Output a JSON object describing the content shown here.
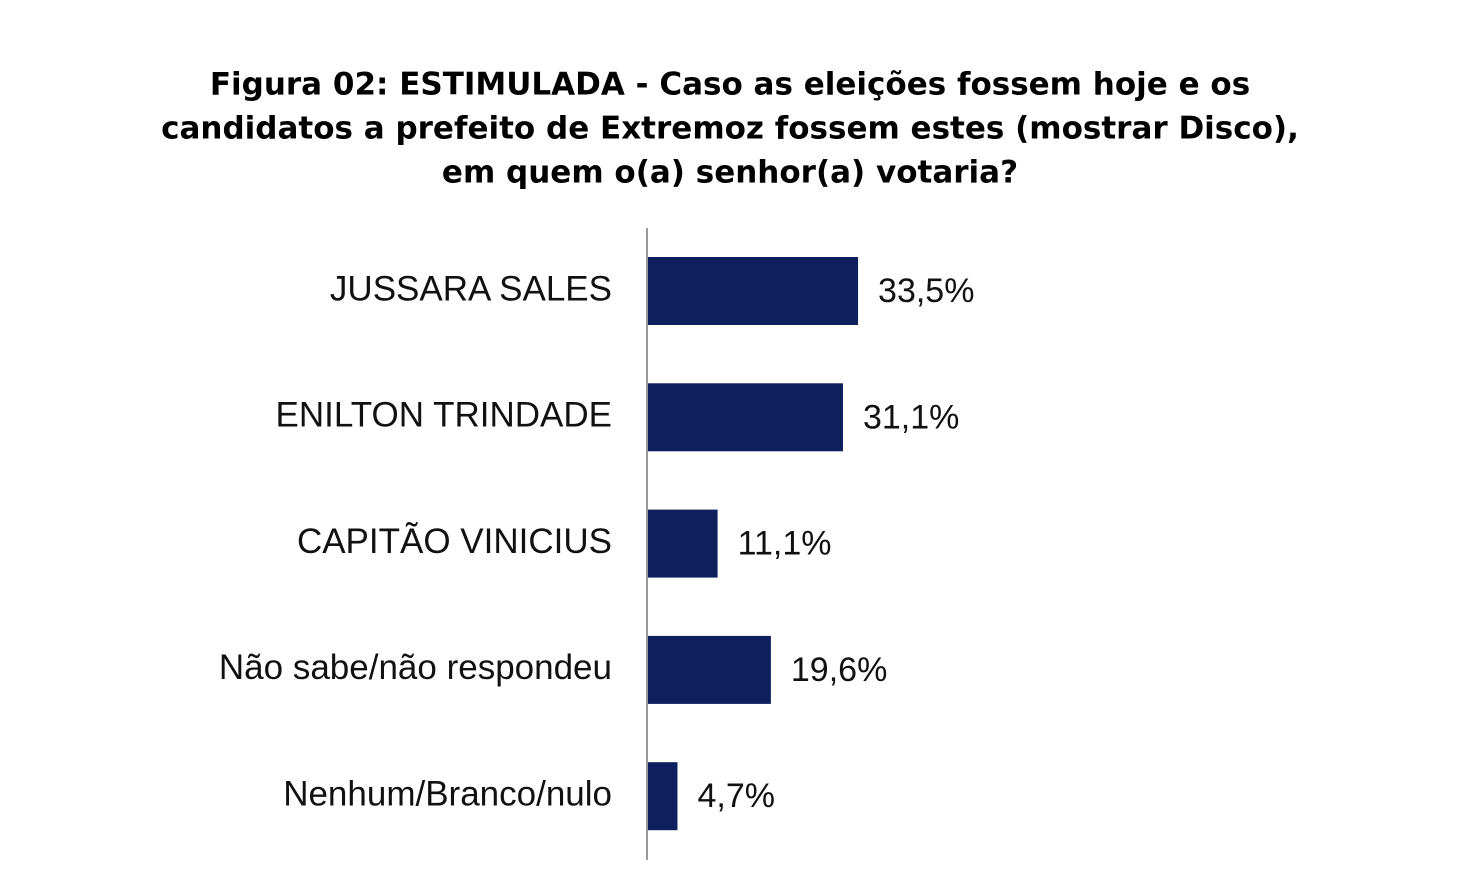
{
  "chart_data": {
    "type": "bar",
    "orientation": "horizontal",
    "title": [
      "Figura 02: ESTIMULADA - Caso as eleições fossem hoje e os",
      "candidatos a prefeito de Extremoz fossem estes (mostrar Disco),",
      "em quem o(a) senhor(a) votaria?"
    ],
    "categories": [
      "JUSSARA SALES",
      "ENILTON TRINDADE",
      "CAPITÃO VINICIUS",
      "Não sabe/não respondeu",
      "Nenhum/Branco/nulo"
    ],
    "values": [
      33.5,
      31.1,
      11.1,
      19.6,
      4.7
    ],
    "value_labels": [
      "33,5%",
      "31,1%",
      "11,1%",
      "19,6%",
      "4,7%"
    ],
    "color": "#0d1f5c"
  }
}
